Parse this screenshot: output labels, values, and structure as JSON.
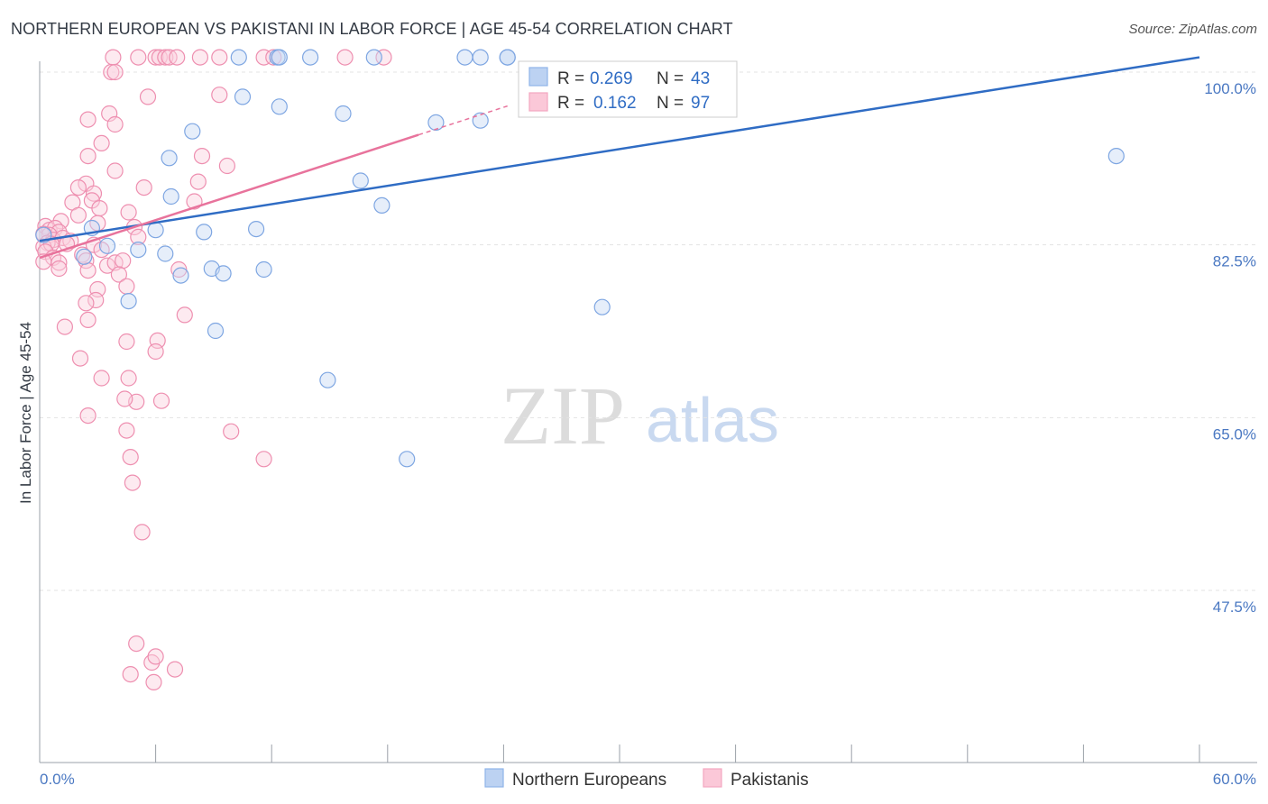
{
  "title": "NORTHERN EUROPEAN VS PAKISTANI IN LABOR FORCE | AGE 45-54 CORRELATION CHART",
  "source": "Source: ZipAtlas.com",
  "watermark": {
    "zip": "ZIP",
    "atlas": "atlas"
  },
  "chart_data": {
    "type": "scatter",
    "ylabel": "In Labor Force | Age 45-54",
    "xlim": [
      0,
      60
    ],
    "ylim": [
      30,
      101.5
    ],
    "y_ticks": [
      47.5,
      65.0,
      82.5,
      100.0
    ],
    "y_tick_labels": [
      "47.5%",
      "65.0%",
      "82.5%",
      "100.0%"
    ],
    "x_tick_labels": {
      "min": "0.0%",
      "max": "60.0%"
    },
    "legend": [
      {
        "series": "Northern Europeans",
        "r_label": "R =",
        "r_value": "0.269",
        "n_label": "N =",
        "n_value": "43"
      },
      {
        "series": "Pakistanis",
        "r_label": "R =",
        "r_value": "0.162",
        "n_label": "N =",
        "n_value": "97"
      }
    ],
    "series": [
      {
        "name": "Northern Europeans",
        "color": "#8fb3e8",
        "line_color": "#2f6cc4",
        "trend": {
          "x0": 0,
          "y0": 82.9,
          "x1": 60,
          "y1": 101.5,
          "solid_to": 60
        },
        "points": [
          [
            10.3,
            101.5
          ],
          [
            12.3,
            101.5
          ],
          [
            12.4,
            101.5
          ],
          [
            14.0,
            101.5
          ],
          [
            17.3,
            101.5
          ],
          [
            22.0,
            101.5
          ],
          [
            22.8,
            101.5
          ],
          [
            24.2,
            101.5
          ],
          [
            24.2,
            101.5
          ],
          [
            10.5,
            97.5
          ],
          [
            12.4,
            96.5
          ],
          [
            15.7,
            95.8
          ],
          [
            20.5,
            94.9
          ],
          [
            22.8,
            95.1
          ],
          [
            7.9,
            94.0
          ],
          [
            6.7,
            91.3
          ],
          [
            16.6,
            89.0
          ],
          [
            6.8,
            87.4
          ],
          [
            17.7,
            86.5
          ],
          [
            2.7,
            84.2
          ],
          [
            6.0,
            84.0
          ],
          [
            8.5,
            83.8
          ],
          [
            11.2,
            84.1
          ],
          [
            0.2,
            83.5
          ],
          [
            3.5,
            82.4
          ],
          [
            5.1,
            82.0
          ],
          [
            2.3,
            81.3
          ],
          [
            6.5,
            81.6
          ],
          [
            8.9,
            80.1
          ],
          [
            9.5,
            79.6
          ],
          [
            11.6,
            80.0
          ],
          [
            7.3,
            79.4
          ],
          [
            4.6,
            76.8
          ],
          [
            9.1,
            73.8
          ],
          [
            29.1,
            76.2
          ],
          [
            14.9,
            68.8
          ],
          [
            19.0,
            60.8
          ],
          [
            55.7,
            91.5
          ]
        ]
      },
      {
        "name": "Pakistanis",
        "color": "#f4a7c0",
        "line_color": "#e8739c",
        "trend": {
          "x0": 0,
          "y0": 81.2,
          "x1": 20,
          "y1": 93.9,
          "solid_to": 19.6,
          "dashed_to": 24.2
        },
        "points": [
          [
            3.8,
            101.5
          ],
          [
            5.1,
            101.5
          ],
          [
            6.0,
            101.5
          ],
          [
            6.2,
            101.5
          ],
          [
            6.5,
            101.5
          ],
          [
            6.7,
            101.5
          ],
          [
            7.1,
            101.5
          ],
          [
            8.3,
            101.5
          ],
          [
            9.3,
            101.5
          ],
          [
            11.6,
            101.5
          ],
          [
            12.1,
            101.5
          ],
          [
            15.8,
            101.5
          ],
          [
            17.8,
            101.5
          ],
          [
            3.7,
            100.0
          ],
          [
            3.9,
            100.0
          ],
          [
            5.6,
            97.5
          ],
          [
            9.3,
            97.7
          ],
          [
            3.6,
            95.8
          ],
          [
            2.5,
            95.2
          ],
          [
            3.9,
            94.7
          ],
          [
            3.2,
            92.8
          ],
          [
            2.5,
            91.5
          ],
          [
            3.9,
            90.0
          ],
          [
            8.4,
            91.5
          ],
          [
            9.7,
            90.5
          ],
          [
            2.4,
            88.7
          ],
          [
            8.2,
            88.9
          ],
          [
            5.4,
            88.3
          ],
          [
            2.0,
            88.3
          ],
          [
            2.8,
            87.7
          ],
          [
            2.7,
            87.0
          ],
          [
            3.1,
            86.2
          ],
          [
            1.7,
            86.8
          ],
          [
            8.0,
            86.9
          ],
          [
            4.6,
            85.8
          ],
          [
            2.0,
            85.5
          ],
          [
            1.1,
            84.9
          ],
          [
            3.0,
            84.7
          ],
          [
            0.3,
            84.4
          ],
          [
            4.9,
            84.3
          ],
          [
            0.5,
            84.0
          ],
          [
            0.8,
            84.2
          ],
          [
            1.0,
            83.8
          ],
          [
            0.5,
            83.5
          ],
          [
            0.2,
            83.6
          ],
          [
            0.7,
            83.0
          ],
          [
            1.2,
            83.2
          ],
          [
            0.4,
            82.7
          ],
          [
            1.6,
            82.9
          ],
          [
            2.8,
            82.5
          ],
          [
            0.2,
            82.3
          ],
          [
            0.6,
            82.6
          ],
          [
            5.1,
            83.3
          ],
          [
            1.4,
            82.6
          ],
          [
            0.3,
            81.8
          ],
          [
            2.2,
            81.5
          ],
          [
            0.7,
            81.2
          ],
          [
            1.0,
            80.7
          ],
          [
            0.2,
            80.8
          ],
          [
            3.5,
            80.4
          ],
          [
            3.9,
            80.7
          ],
          [
            2.4,
            80.9
          ],
          [
            3.2,
            82.0
          ],
          [
            4.3,
            80.9
          ],
          [
            1.0,
            80.1
          ],
          [
            2.5,
            79.9
          ],
          [
            4.1,
            79.5
          ],
          [
            4.5,
            78.3
          ],
          [
            3.0,
            78.0
          ],
          [
            2.9,
            76.9
          ],
          [
            7.2,
            80.0
          ],
          [
            2.4,
            76.6
          ],
          [
            1.3,
            74.2
          ],
          [
            6.1,
            72.8
          ],
          [
            2.5,
            74.9
          ],
          [
            4.5,
            72.7
          ],
          [
            6.0,
            71.7
          ],
          [
            2.1,
            71.0
          ],
          [
            3.2,
            69.0
          ],
          [
            4.6,
            69.0
          ],
          [
            5.0,
            66.6
          ],
          [
            4.4,
            66.9
          ],
          [
            6.3,
            66.7
          ],
          [
            2.5,
            65.2
          ],
          [
            4.5,
            63.7
          ],
          [
            9.9,
            63.6
          ],
          [
            7.5,
            75.4
          ],
          [
            11.6,
            60.8
          ],
          [
            5.3,
            53.4
          ],
          [
            4.7,
            61.0
          ],
          [
            4.8,
            58.4
          ],
          [
            5.8,
            40.2
          ],
          [
            6.0,
            40.8
          ],
          [
            5.0,
            42.1
          ],
          [
            4.7,
            39.0
          ],
          [
            5.9,
            38.2
          ],
          [
            7.0,
            39.5
          ]
        ]
      }
    ]
  }
}
